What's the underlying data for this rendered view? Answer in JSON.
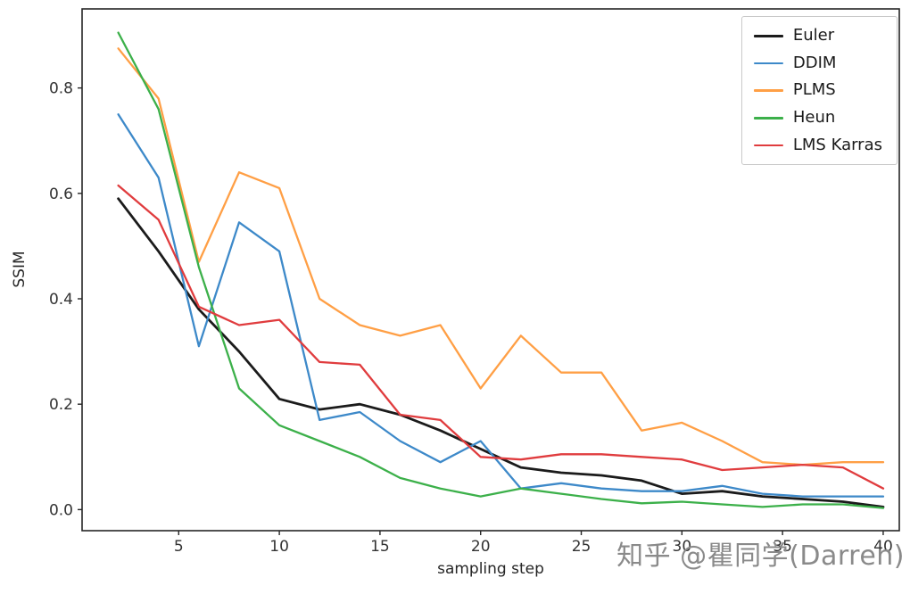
{
  "figure": {
    "background": "#ffffff"
  },
  "watermark": {
    "text": "知乎 @瞿同学(Darren)",
    "color": "#8a8a8a"
  },
  "chart_data": {
    "type": "line",
    "title": "",
    "xlabel": "sampling step",
    "ylabel": "SSIM",
    "grid": false,
    "legend_position": "upper right",
    "axis_color": "#262626",
    "tick_label_color": "#333333",
    "xlim": [
      0.2,
      40.8
    ],
    "ylim": [
      -0.04,
      0.95
    ],
    "xticks": [
      5,
      10,
      15,
      20,
      25,
      30,
      35,
      40
    ],
    "yticks": [
      0.0,
      0.2,
      0.4,
      0.6,
      0.8
    ],
    "x": [
      2,
      4,
      6,
      8,
      10,
      12,
      14,
      16,
      18,
      20,
      22,
      24,
      26,
      28,
      30,
      32,
      34,
      36,
      38,
      40
    ],
    "series": [
      {
        "name": "Euler",
        "color": "#1b1b1b",
        "linewidth": 2.8,
        "values": [
          0.59,
          0.49,
          0.38,
          0.3,
          0.21,
          0.19,
          0.2,
          0.18,
          0.15,
          0.115,
          0.08,
          0.07,
          0.065,
          0.055,
          0.03,
          0.035,
          0.025,
          0.02,
          0.015,
          0.005
        ]
      },
      {
        "name": "DDIM",
        "color": "#3d89c9",
        "linewidth": 2.3,
        "values": [
          0.75,
          0.63,
          0.31,
          0.545,
          0.49,
          0.17,
          0.185,
          0.13,
          0.09,
          0.13,
          0.04,
          0.05,
          0.04,
          0.035,
          0.035,
          0.045,
          0.03,
          0.025,
          0.025,
          0.025
        ]
      },
      {
        "name": "PLMS",
        "color": "#ff9f45",
        "linewidth": 2.3,
        "values": [
          0.875,
          0.78,
          0.47,
          0.64,
          0.61,
          0.4,
          0.35,
          0.33,
          0.35,
          0.23,
          0.33,
          0.26,
          0.26,
          0.15,
          0.165,
          0.13,
          0.09,
          0.085,
          0.09,
          0.09
        ]
      },
      {
        "name": "Heun",
        "color": "#3cb04a",
        "linewidth": 2.3,
        "values": [
          0.905,
          0.76,
          0.46,
          0.23,
          0.16,
          0.13,
          0.1,
          0.06,
          0.04,
          0.025,
          0.04,
          0.03,
          0.02,
          0.012,
          0.015,
          0.01,
          0.005,
          0.01,
          0.01,
          0.003
        ]
      },
      {
        "name": "LMS Karras",
        "color": "#e03c3e",
        "linewidth": 2.3,
        "values": [
          0.615,
          0.55,
          0.385,
          0.35,
          0.36,
          0.28,
          0.275,
          0.18,
          0.17,
          0.1,
          0.095,
          0.105,
          0.105,
          0.1,
          0.095,
          0.075,
          0.08,
          0.085,
          0.08,
          0.04
        ]
      }
    ]
  }
}
